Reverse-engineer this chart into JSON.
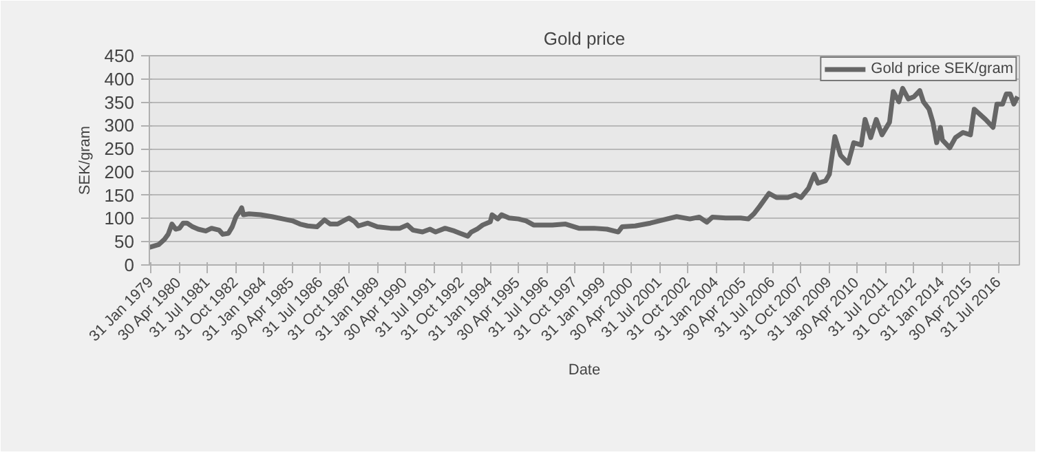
{
  "chart_data": {
    "type": "line",
    "title": "Gold price",
    "xlabel": "Date",
    "ylabel": "SEK/gram",
    "x": [
      "1979-01",
      "1979-06",
      "1979-09",
      "1979-11",
      "1980-01",
      "1980-03",
      "1980-05",
      "1980-07",
      "1980-09",
      "1980-12",
      "1981-03",
      "1981-07",
      "1981-10",
      "1982-02",
      "1982-04",
      "1982-07",
      "1982-09",
      "1982-11",
      "1983-01",
      "1983-02",
      "1983-03",
      "1983-06",
      "1983-12",
      "1984-06",
      "1984-12",
      "1985-05",
      "1985-09",
      "1986-01",
      "1986-06",
      "1986-10",
      "1987-01",
      "1987-05",
      "1987-09",
      "1987-11",
      "1988-02",
      "1988-04",
      "1988-09",
      "1989-02",
      "1989-09",
      "1990-02",
      "1990-06",
      "1990-09",
      "1991-02",
      "1991-06",
      "1991-09",
      "1992-02",
      "1992-07",
      "1992-10",
      "1993-02",
      "1993-04",
      "1993-07",
      "1993-10",
      "1994-02",
      "1994-03",
      "1994-06",
      "1994-08",
      "1994-12",
      "1995-05",
      "1995-09",
      "1996-01",
      "1996-11",
      "1997-06",
      "1998-01",
      "1998-09",
      "1999-04",
      "1999-10",
      "1999-12",
      "2000-07",
      "2001-03",
      "2001-10",
      "2002-05",
      "2002-12",
      "2003-05",
      "2003-09",
      "2003-12",
      "2004-07",
      "2005-03",
      "2005-07",
      "2005-10",
      "2006-01",
      "2006-06",
      "2006-10",
      "2007-04",
      "2007-08",
      "2007-11",
      "2008-03",
      "2008-06",
      "2008-08",
      "2008-12",
      "2009-02",
      "2009-05",
      "2009-08",
      "2009-12",
      "2010-03",
      "2010-07",
      "2010-09",
      "2010-12",
      "2011-03",
      "2011-06",
      "2011-10",
      "2011-12",
      "2012-03",
      "2012-05",
      "2012-08",
      "2012-11",
      "2013-02",
      "2013-04",
      "2013-07",
      "2013-09",
      "2013-11",
      "2014-01",
      "2014-02",
      "2014-06",
      "2014-09",
      "2015-01",
      "2015-05",
      "2015-07",
      "2015-10",
      "2016-01",
      "2016-05",
      "2016-07",
      "2016-10",
      "2016-12",
      "2017-02",
      "2017-04",
      "2017-06"
    ],
    "series": [
      {
        "name": "Gold price SEK/gram",
        "color": "#666666",
        "values": [
          38,
          44,
          55,
          66,
          88,
          77,
          79,
          90,
          90,
          82,
          77,
          73,
          79,
          75,
          66,
          68,
          82,
          104,
          115,
          123,
          108,
          110,
          108,
          104,
          99,
          95,
          88,
          84,
          82,
          97,
          88,
          88,
          97,
          101,
          93,
          84,
          90,
          82,
          79,
          79,
          86,
          75,
          71,
          77,
          71,
          79,
          73,
          68,
          62,
          71,
          77,
          86,
          93,
          108,
          99,
          108,
          101,
          99,
          95,
          86,
          86,
          88,
          79,
          79,
          77,
          71,
          82,
          84,
          90,
          97,
          104,
          99,
          103,
          92,
          103,
          101,
          101,
          99,
          110,
          126,
          154,
          145,
          145,
          151,
          145,
          165,
          195,
          176,
          181,
          195,
          276,
          236,
          219,
          263,
          258,
          313,
          274,
          313,
          280,
          307,
          373,
          351,
          380,
          357,
          362,
          375,
          351,
          335,
          307,
          263,
          296,
          269,
          252,
          274,
          285,
          280,
          335,
          324,
          313,
          296,
          346,
          346,
          368,
          368,
          346,
          362
        ]
      }
    ],
    "xlim": [
      "1979-01-01",
      "2017-06-30"
    ],
    "ylim": [
      0,
      450
    ],
    "yticks": [
      0,
      50,
      100,
      150,
      200,
      250,
      300,
      350,
      400,
      450
    ],
    "xticks": [
      {
        "value": "1979-01-31",
        "label": "31 Jan 1979"
      },
      {
        "value": "1980-04-30",
        "label": "30 Apr 1980"
      },
      {
        "value": "1981-07-31",
        "label": "31 Jul 1981"
      },
      {
        "value": "1982-10-31",
        "label": "31 Oct 1982"
      },
      {
        "value": "1984-01-31",
        "label": "31 Jan 1984"
      },
      {
        "value": "1985-04-30",
        "label": "30 Apr 1985"
      },
      {
        "value": "1986-07-31",
        "label": "31 Jul 1986"
      },
      {
        "value": "1987-10-31",
        "label": "31 Oct 1987"
      },
      {
        "value": "1989-01-31",
        "label": "31 Jan 1989"
      },
      {
        "value": "1990-04-30",
        "label": "30 Apr 1990"
      },
      {
        "value": "1991-07-31",
        "label": "31 Jul 1991"
      },
      {
        "value": "1992-10-31",
        "label": "31 Oct 1992"
      },
      {
        "value": "1994-01-31",
        "label": "31 Jan 1994"
      },
      {
        "value": "1995-04-30",
        "label": "30 Apr 1995"
      },
      {
        "value": "1996-07-31",
        "label": "31 Jul 1996"
      },
      {
        "value": "1997-10-31",
        "label": "31 Oct 1997"
      },
      {
        "value": "1999-01-31",
        "label": "31 Jan 1999"
      },
      {
        "value": "2000-04-30",
        "label": "30 Apr 2000"
      },
      {
        "value": "2001-07-31",
        "label": "31 Jul 2001"
      },
      {
        "value": "2002-10-31",
        "label": "31 Oct 2002"
      },
      {
        "value": "2004-01-31",
        "label": "31 Jan 2004"
      },
      {
        "value": "2005-04-30",
        "label": "30 Apr 2005"
      },
      {
        "value": "2006-07-31",
        "label": "31 Jul 2006"
      },
      {
        "value": "2007-10-31",
        "label": "31 Oct 2007"
      },
      {
        "value": "2009-01-31",
        "label": "31 Jan 2009"
      },
      {
        "value": "2010-04-30",
        "label": "30 Apr 2010"
      },
      {
        "value": "2011-07-31",
        "label": "31 Jul 2011"
      },
      {
        "value": "2012-10-31",
        "label": "31 Oct 2012"
      },
      {
        "value": "2014-01-31",
        "label": "31 Jan 2014"
      },
      {
        "value": "2015-04-30",
        "label": "30 Apr 2015"
      },
      {
        "value": "2016-07-31",
        "label": "31 Jul 2016"
      }
    ],
    "grid": "y",
    "legend": "top right",
    "line_style": "solid"
  }
}
